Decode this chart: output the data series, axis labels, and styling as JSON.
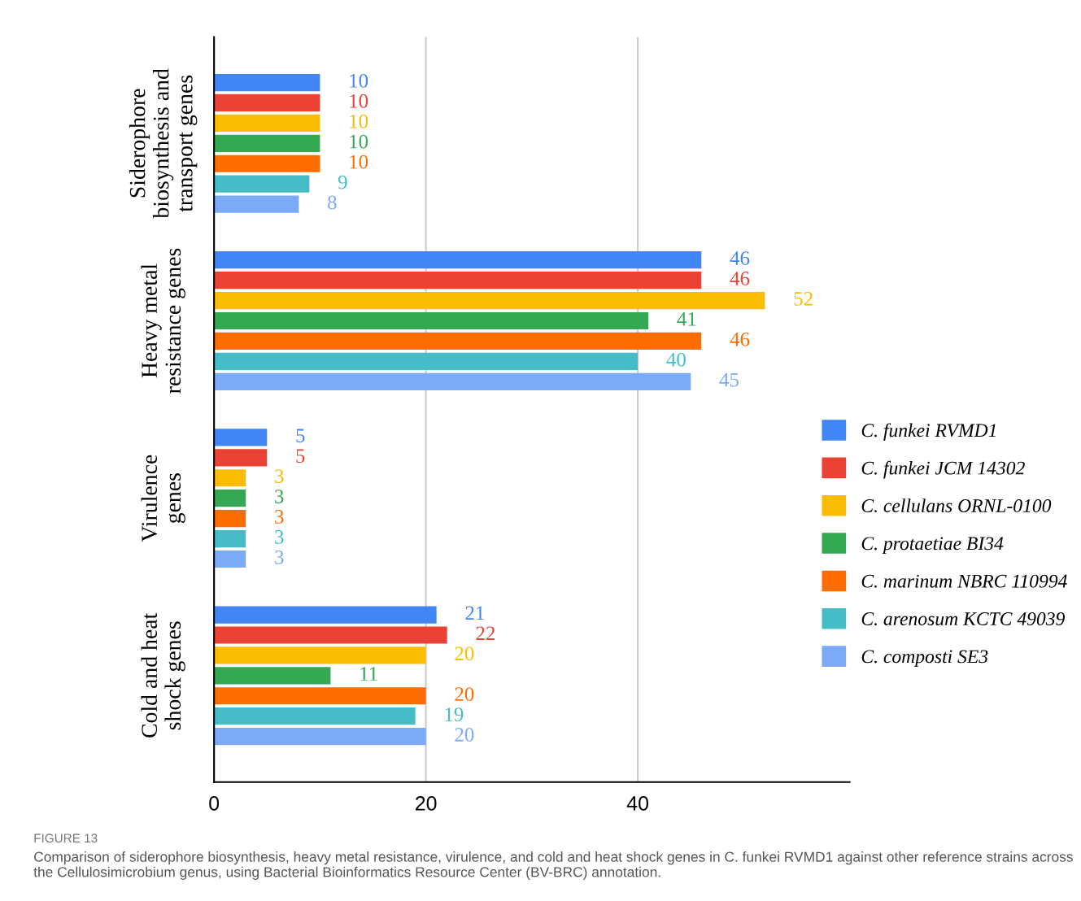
{
  "chart_data": {
    "type": "bar",
    "orientation": "horizontal",
    "categories": [
      "Siderophore\nbiosynthesis and\ntransport genes",
      "Heavy metal\nresistance genes",
      "Virulence\ngenes",
      "Cold and heat\nshock genes"
    ],
    "series": [
      {
        "name": "C. funkei RVMD1",
        "color": "#4285f4",
        "values": [
          10,
          46,
          5,
          21
        ]
      },
      {
        "name": "C. funkei JCM 14302",
        "color": "#ea4335",
        "values": [
          10,
          46,
          5,
          22
        ]
      },
      {
        "name": "C. cellulans ORNL-0100",
        "color": "#fbbc04",
        "values": [
          10,
          52,
          3,
          20
        ]
      },
      {
        "name": "C. protaetiae BI34",
        "color": "#34a853",
        "values": [
          10,
          41,
          3,
          11
        ]
      },
      {
        "name": "C. marinum NBRC 110994",
        "color": "#ff6d01",
        "values": [
          10,
          46,
          3,
          20
        ]
      },
      {
        "name": "C. arenosum KCTC 49039",
        "color": "#46bdc6",
        "values": [
          9,
          40,
          3,
          19
        ]
      },
      {
        "name": "C. composti SE3",
        "color": "#7baaf7",
        "values": [
          8,
          45,
          3,
          20
        ]
      }
    ],
    "xlim": [
      0,
      60
    ],
    "xticks": [
      0,
      20,
      40
    ],
    "grid": "x",
    "legend": "right",
    "data_labels": true,
    "annotations": [
      "FIGURE 13",
      "Comparison of siderophore biosynthesis, heavy metal resistance, virulence, and cold and heat shock genes in C. funkei RVMD1 against other reference strains across the Cellulosimicrobium genus, using Bacterial Bioinformatics Resource Center (BV-BRC) annotation."
    ]
  }
}
